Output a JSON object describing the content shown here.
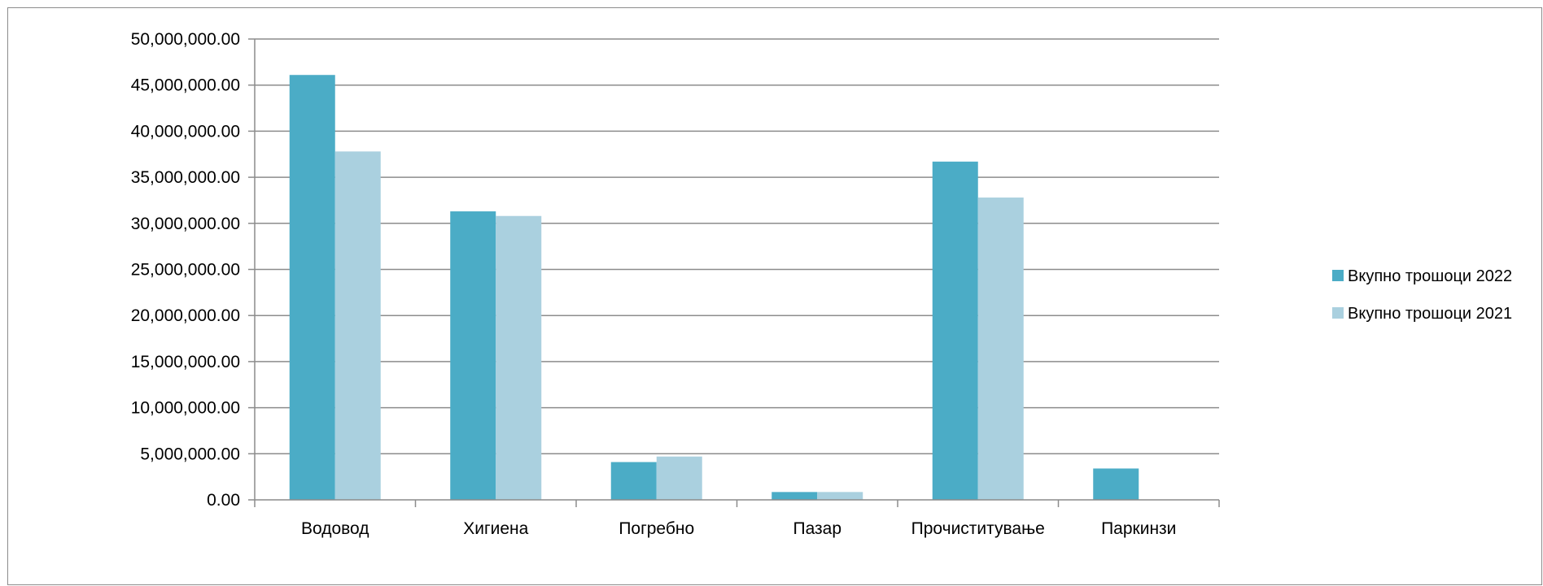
{
  "chart_data": {
    "type": "bar",
    "title": "",
    "xlabel": "",
    "ylabel": "",
    "categories": [
      "Водовод",
      "Хигиена",
      "Погребно",
      "Пазар",
      "Прочиститување",
      "Паркинзи"
    ],
    "series": [
      {
        "name": "Вкупно трошоци 2022",
        "color": "#4bacc6",
        "values": [
          46100000,
          31300000,
          4100000,
          850000,
          36700000,
          3400000
        ]
      },
      {
        "name": "Вкупно трошоци 2021",
        "color": "#aad0df",
        "values": [
          37800000,
          30800000,
          4700000,
          850000,
          32800000,
          0
        ]
      }
    ],
    "ylim": [
      0,
      50000000
    ],
    "y_ticks": [
      0,
      5000000,
      10000000,
      15000000,
      20000000,
      25000000,
      30000000,
      35000000,
      40000000,
      45000000,
      50000000
    ],
    "y_tick_labels": [
      "0.00",
      "5,000,000.00",
      "10,000,000.00",
      "15,000,000.00",
      "20,000,000.00",
      "25,000,000.00",
      "30,000,000.00",
      "35,000,000.00",
      "40,000,000.00",
      "45,000,000.00",
      "50,000,000.00"
    ],
    "grid": true,
    "legend_position": "right"
  }
}
